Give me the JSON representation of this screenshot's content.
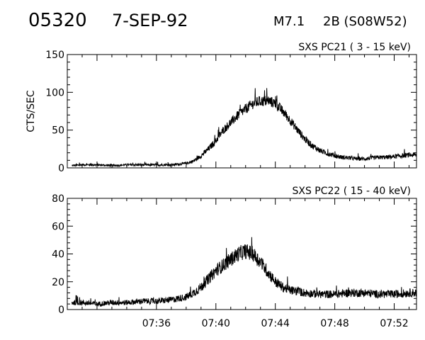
{
  "header": {
    "event_id": "05320",
    "date": "7-SEP-92",
    "flare_class": "M7.1",
    "flare_location": "2B (S08W52)"
  },
  "chart_data": [
    {
      "type": "line",
      "title": "SXS PC21  (  3 - 15 keV)",
      "xlabel": "",
      "ylabel": "CTS/SEC",
      "x_unit": "minutes after 07:30 UT",
      "xlim": [
        0,
        23.5
      ],
      "ylim": [
        0,
        150
      ],
      "yticks": [
        "0",
        "50",
        "100",
        "150"
      ],
      "series": [
        {
          "points": [
            [
              0.3,
              3
            ],
            [
              1,
              4
            ],
            [
              2,
              4
            ],
            [
              3,
              3
            ],
            [
              4,
              4
            ],
            [
              5,
              4
            ],
            [
              6,
              4
            ],
            [
              7,
              4
            ],
            [
              7.5,
              5
            ],
            [
              8,
              6
            ],
            [
              8.5,
              9
            ],
            [
              9,
              16
            ],
            [
              9.5,
              25
            ],
            [
              10,
              36
            ],
            [
              10.5,
              50
            ],
            [
              11,
              60
            ],
            [
              11.5,
              70
            ],
            [
              12,
              78
            ],
            [
              12.5,
              85
            ],
            [
              13,
              88
            ],
            [
              13.5,
              89
            ],
            [
              14,
              85
            ],
            [
              14.5,
              75
            ],
            [
              15,
              63
            ],
            [
              15.5,
              50
            ],
            [
              16,
              38
            ],
            [
              16.5,
              29
            ],
            [
              17,
              23
            ],
            [
              17.5,
              19
            ],
            [
              18,
              16
            ],
            [
              18.5,
              14
            ],
            [
              19,
              13
            ],
            [
              19.5,
              12
            ],
            [
              20,
              12
            ],
            [
              20.5,
              13
            ],
            [
              21,
              14
            ],
            [
              21.5,
              14
            ],
            [
              22,
              15
            ],
            [
              22.5,
              16
            ],
            [
              23,
              17
            ],
            [
              23.5,
              17
            ]
          ],
          "noise": 12
        }
      ]
    },
    {
      "type": "line",
      "title": "SXS PC22  ( 15 - 40 keV)",
      "xlabel": "",
      "ylabel": "",
      "x_unit": "minutes after 07:30 UT",
      "xlim": [
        0,
        23.5
      ],
      "ylim": [
        0,
        80
      ],
      "xticks": [
        "07:36",
        "07:40",
        "07:44",
        "07:48",
        "07:52"
      ],
      "xtick_values": [
        6,
        10,
        14,
        18,
        22
      ],
      "yticks": [
        "0",
        "20",
        "40",
        "60",
        "80"
      ],
      "series": [
        {
          "points": [
            [
              0.3,
              5
            ],
            [
              1,
              5
            ],
            [
              2,
              4
            ],
            [
              3,
              5
            ],
            [
              4,
              5
            ],
            [
              5,
              6
            ],
            [
              6,
              6
            ],
            [
              7,
              7
            ],
            [
              7.5,
              8
            ],
            [
              8,
              9
            ],
            [
              8.5,
              12
            ],
            [
              9,
              16
            ],
            [
              9.5,
              22
            ],
            [
              10,
              28
            ],
            [
              10.5,
              32
            ],
            [
              11,
              36
            ],
            [
              11.5,
              40
            ],
            [
              12,
              42
            ],
            [
              12.5,
              40
            ],
            [
              13,
              34
            ],
            [
              13.5,
              27
            ],
            [
              14,
              20
            ],
            [
              14.5,
              16
            ],
            [
              15,
              14
            ],
            [
              16,
              12
            ],
            [
              17,
              11
            ],
            [
              18,
              11
            ],
            [
              19,
              12
            ],
            [
              20,
              12
            ],
            [
              21,
              11
            ],
            [
              22,
              11
            ],
            [
              23,
              12
            ],
            [
              23.5,
              12
            ]
          ],
          "noise": 10
        }
      ]
    }
  ]
}
